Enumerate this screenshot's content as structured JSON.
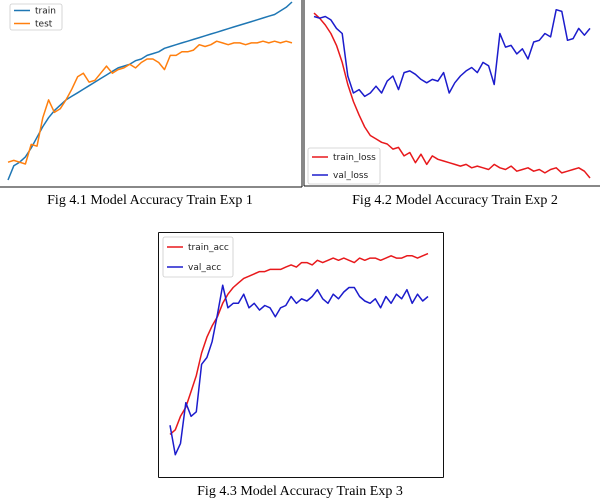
{
  "captions": {
    "fig1": "Fig 4.1 Model Accuracy Train Exp 1",
    "fig2": "Fig 4.2 Model Accuracy Train Exp 2",
    "fig3": "Fig 4.3 Model Accuracy Train Exp 3"
  },
  "chart_data": [
    {
      "type": "line",
      "title": "",
      "xlabel": "",
      "ylabel": "",
      "grid": false,
      "axes_ticks_shown": false,
      "legend_position": "top-left",
      "x": [
        0,
        1,
        2,
        3,
        4,
        5,
        6,
        7,
        8,
        9,
        10,
        11,
        12,
        13,
        14,
        15,
        16,
        17,
        18,
        19,
        20,
        21,
        22,
        23,
        24,
        25,
        26,
        27,
        28,
        29,
        30,
        31,
        32,
        33,
        34,
        35,
        36,
        37,
        38,
        39,
        40,
        41,
        42,
        43,
        44,
        45,
        46,
        47,
        48,
        49
      ],
      "ylim": [
        0,
        1
      ],
      "series": [
        {
          "name": "train",
          "color": "#1f77b4",
          "values": [
            0.0,
            0.08,
            0.1,
            0.13,
            0.18,
            0.24,
            0.3,
            0.35,
            0.39,
            0.42,
            0.45,
            0.47,
            0.49,
            0.51,
            0.53,
            0.55,
            0.57,
            0.59,
            0.61,
            0.63,
            0.64,
            0.65,
            0.67,
            0.68,
            0.7,
            0.71,
            0.72,
            0.74,
            0.75,
            0.76,
            0.77,
            0.78,
            0.79,
            0.8,
            0.81,
            0.82,
            0.83,
            0.84,
            0.85,
            0.86,
            0.87,
            0.88,
            0.89,
            0.9,
            0.91,
            0.92,
            0.93,
            0.95,
            0.97,
            1.0
          ]
        },
        {
          "name": "test",
          "color": "#ff7f0e",
          "values": [
            0.1,
            0.11,
            0.1,
            0.09,
            0.2,
            0.19,
            0.35,
            0.45,
            0.38,
            0.4,
            0.45,
            0.51,
            0.58,
            0.6,
            0.55,
            0.56,
            0.6,
            0.64,
            0.6,
            0.62,
            0.63,
            0.65,
            0.63,
            0.66,
            0.68,
            0.68,
            0.66,
            0.62,
            0.7,
            0.7,
            0.72,
            0.72,
            0.73,
            0.76,
            0.75,
            0.76,
            0.78,
            0.77,
            0.76,
            0.77,
            0.77,
            0.76,
            0.77,
            0.77,
            0.78,
            0.77,
            0.78,
            0.77,
            0.78,
            0.77
          ]
        }
      ]
    },
    {
      "type": "line",
      "title": "",
      "xlabel": "",
      "ylabel": "",
      "grid": false,
      "axes_ticks_shown": false,
      "legend_position": "bottom-left",
      "x": [
        0,
        1,
        2,
        3,
        4,
        5,
        6,
        7,
        8,
        9,
        10,
        11,
        12,
        13,
        14,
        15,
        16,
        17,
        18,
        19,
        20,
        21,
        22,
        23,
        24,
        25,
        26,
        27,
        28,
        29,
        30,
        31,
        32,
        33,
        34,
        35,
        36,
        37,
        38,
        39,
        40,
        41,
        42,
        43,
        44,
        45,
        46,
        47,
        48,
        49
      ],
      "ylim": [
        0,
        1
      ],
      "series": [
        {
          "name": "train_loss",
          "color": "#e8191c",
          "values": [
            0.97,
            0.94,
            0.9,
            0.85,
            0.78,
            0.68,
            0.55,
            0.45,
            0.37,
            0.3,
            0.25,
            0.23,
            0.21,
            0.2,
            0.17,
            0.18,
            0.13,
            0.15,
            0.09,
            0.14,
            0.08,
            0.13,
            0.11,
            0.1,
            0.09,
            0.08,
            0.07,
            0.08,
            0.06,
            0.07,
            0.06,
            0.05,
            0.08,
            0.06,
            0.05,
            0.07,
            0.04,
            0.05,
            0.06,
            0.04,
            0.05,
            0.03,
            0.05,
            0.06,
            0.03,
            0.04,
            0.05,
            0.06,
            0.04,
            0.0
          ]
        },
        {
          "name": "val_loss",
          "color": "#1c1ccc",
          "values": [
            0.95,
            0.94,
            0.95,
            0.93,
            0.88,
            0.85,
            0.6,
            0.5,
            0.52,
            0.48,
            0.5,
            0.54,
            0.5,
            0.57,
            0.6,
            0.52,
            0.62,
            0.63,
            0.61,
            0.58,
            0.56,
            0.58,
            0.57,
            0.62,
            0.5,
            0.56,
            0.6,
            0.63,
            0.65,
            0.62,
            0.68,
            0.66,
            0.55,
            0.85,
            0.77,
            0.78,
            0.73,
            0.76,
            0.7,
            0.8,
            0.81,
            0.85,
            0.83,
            0.99,
            0.98,
            0.81,
            0.82,
            0.88,
            0.84,
            0.88
          ]
        }
      ]
    },
    {
      "type": "line",
      "title": "",
      "xlabel": "",
      "ylabel": "",
      "grid": false,
      "axes_ticks_shown": false,
      "legend_position": "top-left",
      "x": [
        0,
        1,
        2,
        3,
        4,
        5,
        6,
        7,
        8,
        9,
        10,
        11,
        12,
        13,
        14,
        15,
        16,
        17,
        18,
        19,
        20,
        21,
        22,
        23,
        24,
        25,
        26,
        27,
        28,
        29,
        30,
        31,
        32,
        33,
        34,
        35,
        36,
        37,
        38,
        39,
        40,
        41,
        42,
        43,
        44,
        45,
        46,
        47,
        48,
        49
      ],
      "ylim": [
        0,
        1
      ],
      "series": [
        {
          "name": "train_acc",
          "color": "#e8191c",
          "values": [
            0.14,
            0.16,
            0.22,
            0.26,
            0.33,
            0.4,
            0.5,
            0.57,
            0.62,
            0.66,
            0.72,
            0.76,
            0.79,
            0.81,
            0.83,
            0.84,
            0.85,
            0.86,
            0.86,
            0.87,
            0.87,
            0.87,
            0.88,
            0.89,
            0.88,
            0.9,
            0.9,
            0.89,
            0.91,
            0.9,
            0.91,
            0.92,
            0.91,
            0.92,
            0.91,
            0.9,
            0.92,
            0.91,
            0.92,
            0.92,
            0.91,
            0.92,
            0.93,
            0.92,
            0.92,
            0.93,
            0.93,
            0.92,
            0.93,
            0.94
          ]
        },
        {
          "name": "val_acc",
          "color": "#1c1ccc",
          "values": [
            0.18,
            0.05,
            0.1,
            0.28,
            0.22,
            0.24,
            0.45,
            0.48,
            0.55,
            0.67,
            0.8,
            0.7,
            0.72,
            0.72,
            0.76,
            0.7,
            0.72,
            0.69,
            0.71,
            0.7,
            0.66,
            0.7,
            0.71,
            0.75,
            0.72,
            0.74,
            0.73,
            0.75,
            0.78,
            0.74,
            0.72,
            0.76,
            0.74,
            0.77,
            0.79,
            0.79,
            0.75,
            0.73,
            0.72,
            0.74,
            0.7,
            0.75,
            0.72,
            0.76,
            0.74,
            0.78,
            0.72,
            0.76,
            0.73,
            0.75
          ]
        }
      ]
    }
  ]
}
